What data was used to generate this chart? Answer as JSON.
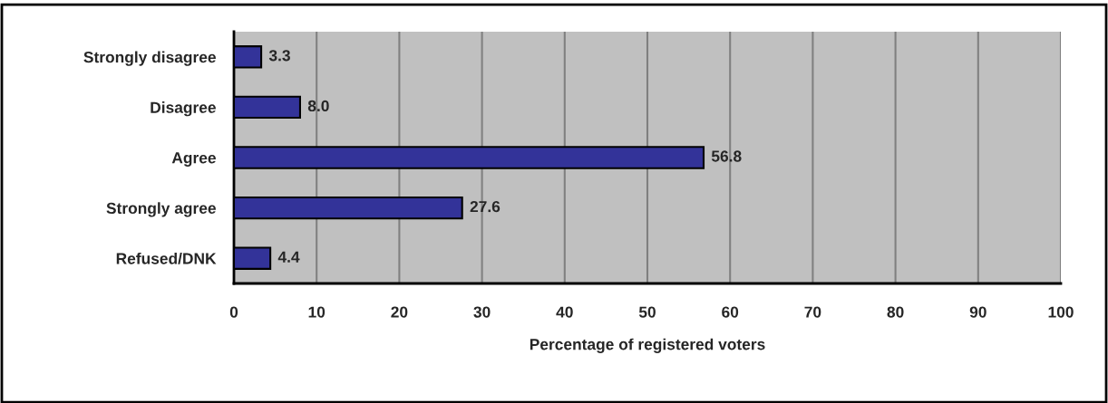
{
  "chart_data": {
    "type": "bar",
    "orientation": "horizontal",
    "categories": [
      "Strongly disagree",
      "Disagree",
      "Agree",
      "Strongly agree",
      "Refused/DNK"
    ],
    "values": [
      3.3,
      8.0,
      56.8,
      27.6,
      4.4
    ],
    "value_labels": [
      "3.3",
      "8.0",
      "56.8",
      "27.6",
      "4.4"
    ],
    "color": "#333399",
    "xlabel": "Percentage of registered voters",
    "xlim": [
      0,
      100
    ],
    "xticks": [
      0,
      10,
      20,
      30,
      40,
      50,
      60,
      70,
      80,
      90,
      100
    ],
    "grid": "x"
  }
}
